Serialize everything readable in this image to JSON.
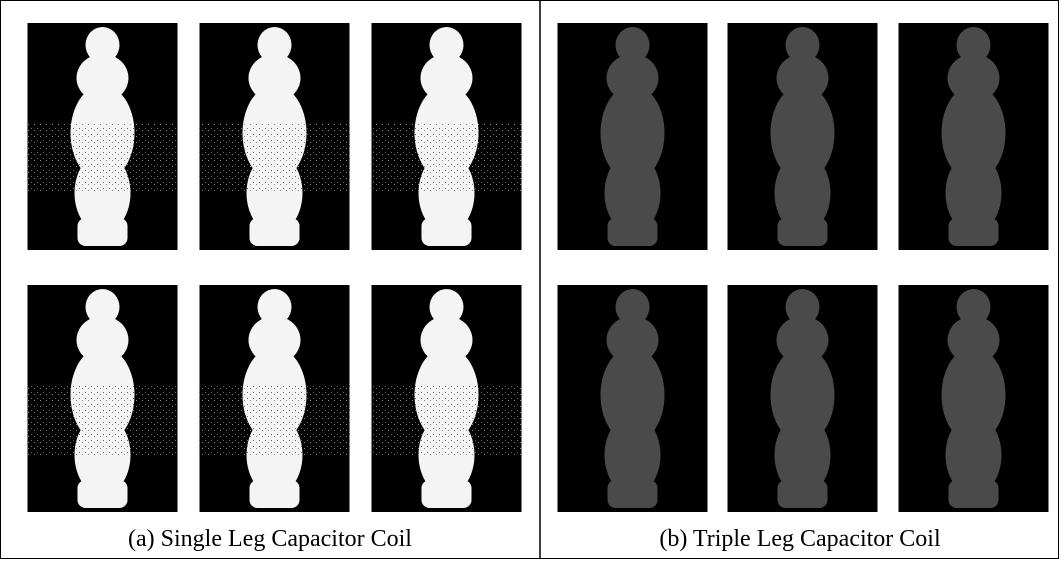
{
  "panels": [
    {
      "caption": "(a) Single Leg Capacitor Coil"
    },
    {
      "caption": "(b) Triple Leg Capacitor Coil"
    }
  ]
}
